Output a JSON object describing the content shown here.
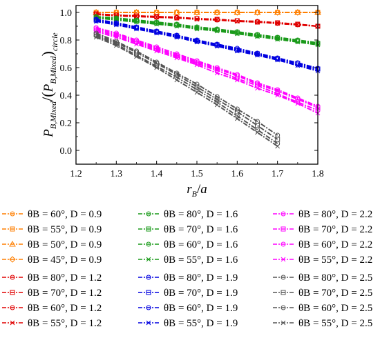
{
  "chart_data": {
    "type": "line",
    "xlabel": "r_B/a",
    "ylabel": "P_B,Mixed/(P_B,Mixed)_circle",
    "xlim": [
      1.2,
      1.8
    ],
    "ylim": [
      -0.1,
      1.05
    ],
    "xticks": [
      "1.2",
      "1.3",
      "1.4",
      "1.5",
      "1.6",
      "1.7",
      "1.8"
    ],
    "yticks": [
      "0.0",
      "0.2",
      "0.4",
      "0.6",
      "0.8",
      "1.0"
    ],
    "legend_placement": "bottom",
    "grid": false,
    "series": [
      {
        "name": "θB = 60°, D = 0.9",
        "color": "#ff7f00",
        "marker": "circle",
        "x": [
          1.25,
          1.3,
          1.35,
          1.4,
          1.45,
          1.5,
          1.55,
          1.6,
          1.65,
          1.7,
          1.75,
          1.8
        ],
        "y": [
          1.0,
          1.0,
          1.0,
          1.0,
          1.0,
          1.0,
          1.0,
          1.0,
          1.0,
          1.0,
          1.0,
          1.0
        ]
      },
      {
        "name": "θB = 55°, D = 0.9",
        "color": "#ff7f00",
        "marker": "square",
        "x": [
          1.25,
          1.3,
          1.35,
          1.4,
          1.45,
          1.5,
          1.55,
          1.6,
          1.65,
          1.7,
          1.75,
          1.8
        ],
        "y": [
          1.0,
          1.0,
          1.0,
          1.0,
          1.0,
          1.0,
          1.0,
          1.0,
          1.0,
          1.0,
          1.0,
          1.0
        ]
      },
      {
        "name": "θB = 50°, D = 0.9",
        "color": "#ff7f00",
        "marker": "triangle",
        "x": [
          1.25,
          1.3,
          1.35,
          1.4,
          1.45,
          1.5,
          1.55,
          1.6,
          1.65,
          1.7,
          1.75,
          1.8
        ],
        "y": [
          1.0,
          1.0,
          1.0,
          1.0,
          1.0,
          1.0,
          1.0,
          1.0,
          1.0,
          1.0,
          1.0,
          1.0
        ]
      },
      {
        "name": "θB = 45°, D = 0.9",
        "color": "#ff7f00",
        "marker": "diamond",
        "x": [
          1.25,
          1.3,
          1.35,
          1.4,
          1.45,
          1.5,
          1.55,
          1.6,
          1.65,
          1.7,
          1.75,
          1.8
        ],
        "y": [
          1.0,
          1.0,
          1.0,
          1.0,
          1.0,
          1.0,
          1.0,
          1.0,
          1.0,
          1.0,
          1.0,
          1.0
        ]
      },
      {
        "name": "θB = 80°, D = 1.2",
        "color": "#e00000",
        "marker": "circle",
        "x": [
          1.25,
          1.3,
          1.35,
          1.4,
          1.45,
          1.5,
          1.55,
          1.6,
          1.65,
          1.7,
          1.75,
          1.8
        ],
        "y": [
          0.99,
          0.98,
          0.975,
          0.97,
          0.965,
          0.955,
          0.95,
          0.94,
          0.935,
          0.925,
          0.915,
          0.9
        ]
      },
      {
        "name": "θB = 70°, D = 1.2",
        "color": "#e00000",
        "marker": "square",
        "x": [
          1.25,
          1.3,
          1.35,
          1.4,
          1.45,
          1.5,
          1.55,
          1.6,
          1.65,
          1.7,
          1.75,
          1.8
        ],
        "y": [
          0.99,
          0.98,
          0.975,
          0.97,
          0.96,
          0.955,
          0.95,
          0.94,
          0.93,
          0.925,
          0.915,
          0.9
        ]
      },
      {
        "name": "θB = 60°, D = 1.2",
        "color": "#e00000",
        "marker": "circle",
        "x": [
          1.25,
          1.3,
          1.35,
          1.4,
          1.45,
          1.5,
          1.55,
          1.6,
          1.65,
          1.7,
          1.75,
          1.8
        ],
        "y": [
          0.985,
          0.98,
          0.975,
          0.965,
          0.96,
          0.955,
          0.945,
          0.94,
          0.93,
          0.92,
          0.91,
          0.9
        ]
      },
      {
        "name": "θB = 55°, D = 1.2",
        "color": "#e00000",
        "marker": "cross",
        "x": [
          1.25,
          1.3,
          1.35,
          1.4,
          1.45,
          1.5,
          1.55,
          1.6,
          1.65,
          1.7,
          1.75,
          1.8
        ],
        "y": [
          0.985,
          0.975,
          0.97,
          0.965,
          0.96,
          0.95,
          0.945,
          0.935,
          0.93,
          0.92,
          0.91,
          0.9
        ]
      },
      {
        "name": "θB = 80°, D = 1.6",
        "color": "#1a9a1a",
        "marker": "circle",
        "x": [
          1.25,
          1.3,
          1.35,
          1.4,
          1.45,
          1.5,
          1.55,
          1.6,
          1.65,
          1.7,
          1.75,
          1.8
        ],
        "y": [
          0.97,
          0.96,
          0.945,
          0.93,
          0.915,
          0.895,
          0.88,
          0.86,
          0.84,
          0.82,
          0.8,
          0.78
        ]
      },
      {
        "name": "θB = 70°, D = 1.6",
        "color": "#1a9a1a",
        "marker": "square",
        "x": [
          1.25,
          1.3,
          1.35,
          1.4,
          1.45,
          1.5,
          1.55,
          1.6,
          1.65,
          1.7,
          1.75,
          1.8
        ],
        "y": [
          0.965,
          0.955,
          0.94,
          0.925,
          0.91,
          0.89,
          0.875,
          0.855,
          0.835,
          0.815,
          0.795,
          0.775
        ]
      },
      {
        "name": "θB = 60°, D = 1.6",
        "color": "#1a9a1a",
        "marker": "circle",
        "x": [
          1.25,
          1.3,
          1.35,
          1.4,
          1.45,
          1.5,
          1.55,
          1.6,
          1.65,
          1.7,
          1.75,
          1.8
        ],
        "y": [
          0.96,
          0.95,
          0.935,
          0.92,
          0.905,
          0.885,
          0.87,
          0.85,
          0.83,
          0.81,
          0.79,
          0.77
        ]
      },
      {
        "name": "θB = 55°, D = 1.6",
        "color": "#1a9a1a",
        "marker": "cross",
        "x": [
          1.25,
          1.3,
          1.35,
          1.4,
          1.45,
          1.5,
          1.55,
          1.6,
          1.65,
          1.7,
          1.75,
          1.8
        ],
        "y": [
          0.96,
          0.945,
          0.93,
          0.915,
          0.9,
          0.88,
          0.865,
          0.845,
          0.825,
          0.805,
          0.785,
          0.765
        ]
      },
      {
        "name": "θB = 80°, D = 1.9",
        "color": "#0000e0",
        "marker": "circle",
        "x": [
          1.25,
          1.3,
          1.35,
          1.4,
          1.45,
          1.5,
          1.55,
          1.6,
          1.65,
          1.7,
          1.75,
          1.8
        ],
        "y": [
          0.95,
          0.925,
          0.895,
          0.865,
          0.835,
          0.8,
          0.77,
          0.74,
          0.705,
          0.67,
          0.635,
          0.595
        ]
      },
      {
        "name": "θB = 70°, D = 1.9",
        "color": "#0000e0",
        "marker": "square",
        "x": [
          1.25,
          1.3,
          1.35,
          1.4,
          1.45,
          1.5,
          1.55,
          1.6,
          1.65,
          1.7,
          1.75,
          1.8
        ],
        "y": [
          0.945,
          0.92,
          0.89,
          0.86,
          0.83,
          0.795,
          0.765,
          0.73,
          0.7,
          0.665,
          0.63,
          0.59
        ]
      },
      {
        "name": "θB = 60°, D = 1.9",
        "color": "#0000e0",
        "marker": "circle",
        "x": [
          1.25,
          1.3,
          1.35,
          1.4,
          1.45,
          1.5,
          1.55,
          1.6,
          1.65,
          1.7,
          1.75,
          1.8
        ],
        "y": [
          0.94,
          0.915,
          0.885,
          0.855,
          0.825,
          0.79,
          0.76,
          0.725,
          0.695,
          0.66,
          0.62,
          0.585
        ]
      },
      {
        "name": "θB = 55°, D = 1.9",
        "color": "#0000e0",
        "marker": "cross",
        "x": [
          1.25,
          1.3,
          1.35,
          1.4,
          1.45,
          1.5,
          1.55,
          1.6,
          1.65,
          1.7,
          1.75,
          1.8
        ],
        "y": [
          0.935,
          0.91,
          0.88,
          0.85,
          0.82,
          0.785,
          0.755,
          0.72,
          0.69,
          0.655,
          0.615,
          0.575
        ]
      },
      {
        "name": "θB = 80°, D = 2.2",
        "color": "#ff00ff",
        "marker": "circle",
        "x": [
          1.25,
          1.3,
          1.35,
          1.4,
          1.45,
          1.5,
          1.55,
          1.6,
          1.65,
          1.7,
          1.75,
          1.8
        ],
        "y": [
          0.89,
          0.85,
          0.8,
          0.75,
          0.7,
          0.65,
          0.6,
          0.55,
          0.49,
          0.44,
          0.38,
          0.32
        ]
      },
      {
        "name": "θB = 70°, D = 2.2",
        "color": "#ff00ff",
        "marker": "square",
        "x": [
          1.25,
          1.3,
          1.35,
          1.4,
          1.45,
          1.5,
          1.55,
          1.6,
          1.65,
          1.7,
          1.75,
          1.8
        ],
        "y": [
          0.88,
          0.84,
          0.79,
          0.74,
          0.69,
          0.64,
          0.59,
          0.54,
          0.48,
          0.43,
          0.37,
          0.31
        ]
      },
      {
        "name": "θB = 60°, D = 2.2",
        "color": "#ff00ff",
        "marker": "circle",
        "x": [
          1.25,
          1.3,
          1.35,
          1.4,
          1.45,
          1.5,
          1.55,
          1.6,
          1.65,
          1.7,
          1.75,
          1.8
        ],
        "y": [
          0.87,
          0.83,
          0.78,
          0.73,
          0.68,
          0.63,
          0.58,
          0.52,
          0.47,
          0.41,
          0.35,
          0.29
        ]
      },
      {
        "name": "θB = 55°, D = 2.2",
        "color": "#ff00ff",
        "marker": "cross",
        "x": [
          1.25,
          1.3,
          1.35,
          1.4,
          1.45,
          1.5,
          1.55,
          1.6,
          1.65,
          1.7,
          1.75,
          1.8
        ],
        "y": [
          0.86,
          0.82,
          0.77,
          0.72,
          0.67,
          0.62,
          0.56,
          0.51,
          0.45,
          0.4,
          0.34,
          0.27
        ]
      },
      {
        "name": "θB = 80°, D = 2.5",
        "color": "#555555",
        "marker": "circle",
        "x": [
          1.25,
          1.3,
          1.35,
          1.4,
          1.45,
          1.5,
          1.55,
          1.6,
          1.65,
          1.7
        ],
        "y": [
          0.85,
          0.79,
          0.72,
          0.64,
          0.56,
          0.48,
          0.39,
          0.3,
          0.21,
          0.11
        ]
      },
      {
        "name": "θB = 70°, D = 2.5",
        "color": "#555555",
        "marker": "square",
        "x": [
          1.25,
          1.3,
          1.35,
          1.4,
          1.45,
          1.5,
          1.55,
          1.6,
          1.65,
          1.7
        ],
        "y": [
          0.84,
          0.78,
          0.71,
          0.63,
          0.55,
          0.46,
          0.37,
          0.28,
          0.18,
          0.08
        ]
      },
      {
        "name": "θB = 60°, D = 2.5",
        "color": "#555555",
        "marker": "circle",
        "x": [
          1.25,
          1.3,
          1.35,
          1.4,
          1.45,
          1.5,
          1.55,
          1.6,
          1.65,
          1.7
        ],
        "y": [
          0.83,
          0.77,
          0.69,
          0.61,
          0.53,
          0.44,
          0.35,
          0.25,
          0.15,
          0.05
        ]
      },
      {
        "name": "θB = 55°, D = 2.5",
        "color": "#555555",
        "marker": "cross",
        "x": [
          1.25,
          1.3,
          1.35,
          1.4,
          1.45,
          1.5,
          1.55,
          1.6,
          1.65,
          1.7
        ],
        "y": [
          0.82,
          0.76,
          0.68,
          0.6,
          0.51,
          0.42,
          0.33,
          0.23,
          0.13,
          0.03
        ]
      }
    ]
  }
}
